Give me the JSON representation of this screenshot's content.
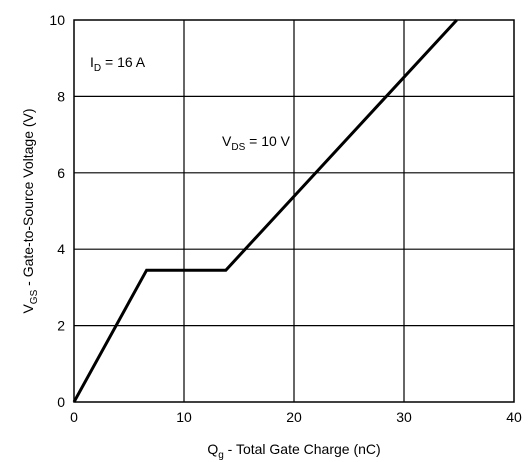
{
  "chart_data": {
    "type": "line",
    "xlabel": {
      "main": "Q",
      "sub": "g",
      "rest": " - Total Gate Charge (nC)"
    },
    "ylabel": {
      "main": "V",
      "sub": "GS",
      "rest": " - Gate-to-Source Voltage (V)"
    },
    "xlim": [
      0,
      40
    ],
    "ylim": [
      0,
      10
    ],
    "x_ticks": [
      0,
      10,
      20,
      30,
      40
    ],
    "y_ticks": [
      0,
      2,
      4,
      6,
      8,
      10
    ],
    "grid": true,
    "annotations": [
      {
        "id": "id",
        "main": "I",
        "sub": "D",
        "rest": " = 16 A"
      },
      {
        "id": "vds",
        "main": "V",
        "sub": "DS",
        "rest": " = 10 V"
      }
    ],
    "series": [
      {
        "x": [
          0,
          6.6,
          13.8,
          34.8
        ],
        "y": [
          0,
          3.45,
          3.45,
          10
        ]
      }
    ],
    "line_color": "#000000"
  }
}
